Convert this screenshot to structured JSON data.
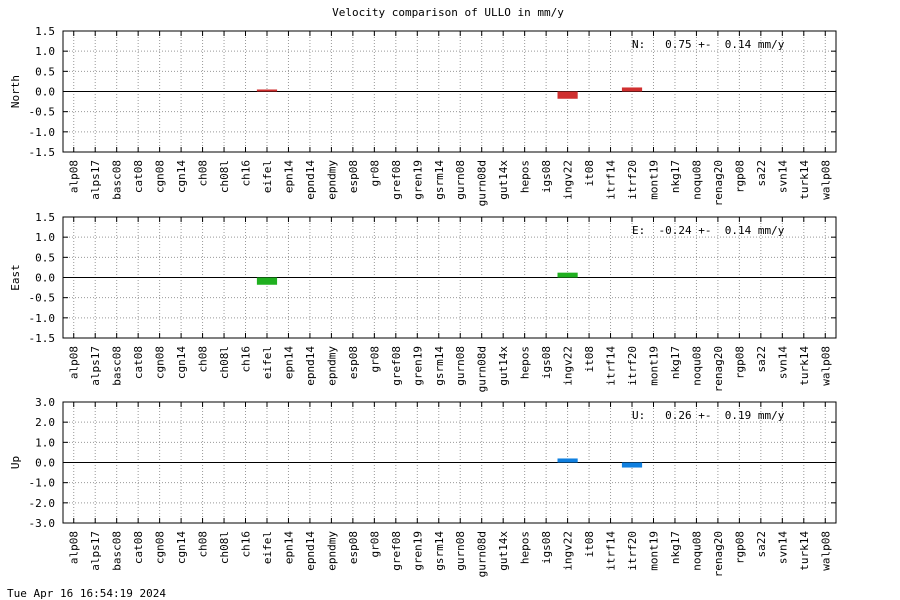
{
  "title": "Velocity comparison of ULLO in mm/y",
  "timestamp": "Tue Apr 16 16:54:19 2024",
  "chart_data": [
    {
      "type": "bar",
      "ylabel": "North",
      "annotation": "N:   0.75 +-  0.14 mm/y",
      "color": "#d03030",
      "grid": true,
      "categories": [
        "alp08",
        "alps17",
        "basc08",
        "cat08",
        "cgn08",
        "cgn14",
        "ch08",
        "ch08l",
        "ch16",
        "eifel",
        "epn14",
        "epnd14",
        "epndmy",
        "esp08",
        "gr08",
        "gref08",
        "gren19",
        "gsrm14",
        "gurn08",
        "gurn08d",
        "gut14x",
        "hepos",
        "igs08",
        "ingv22",
        "it08",
        "itrf14",
        "itrf20",
        "mont19",
        "nkg17",
        "noqu08",
        "renag20",
        "rgp08",
        "sa22",
        "svn14",
        "turk14",
        "walp08"
      ],
      "values": [
        null,
        null,
        null,
        null,
        null,
        null,
        null,
        null,
        null,
        0.05,
        null,
        null,
        null,
        null,
        null,
        null,
        null,
        null,
        null,
        null,
        null,
        null,
        null,
        -0.18,
        null,
        null,
        0.1,
        null,
        null,
        null,
        null,
        null,
        null,
        null,
        null,
        null
      ],
      "ylim": [
        -1.5,
        1.5
      ],
      "yticks": [
        1.5,
        {
          "value": 1,
          "label": "1.0"
        },
        0.5,
        {
          "value": 0,
          "label": "0.0"
        },
        -0.5,
        {
          "value": -1,
          "label": "-1.0"
        },
        -1.5
      ]
    },
    {
      "type": "bar",
      "ylabel": "East",
      "annotation": "E:  -0.24 +-  0.14 mm/y",
      "color": "#20b020",
      "grid": true,
      "categories": [
        "alp08",
        "alps17",
        "basc08",
        "cat08",
        "cgn08",
        "cgn14",
        "ch08",
        "ch08l",
        "ch16",
        "eifel",
        "epn14",
        "epnd14",
        "epndmy",
        "esp08",
        "gr08",
        "gref08",
        "gren19",
        "gsrm14",
        "gurn08",
        "gurn08d",
        "gut14x",
        "hepos",
        "igs08",
        "ingv22",
        "it08",
        "itrf14",
        "itrf20",
        "mont19",
        "nkg17",
        "noqu08",
        "renag20",
        "rgp08",
        "sa22",
        "svn14",
        "turk14",
        "walp08"
      ],
      "values": [
        null,
        null,
        null,
        null,
        null,
        null,
        null,
        null,
        null,
        -0.18,
        null,
        null,
        null,
        null,
        null,
        null,
        null,
        null,
        null,
        null,
        null,
        null,
        null,
        0.12,
        null,
        null,
        null,
        null,
        null,
        null,
        null,
        null,
        null,
        null,
        null,
        null
      ],
      "ylim": [
        -1.5,
        1.5
      ],
      "yticks": [
        1.5,
        {
          "value": 1,
          "label": "1.0"
        },
        0.5,
        {
          "value": 0,
          "label": "0.0"
        },
        -0.5,
        {
          "value": -1,
          "label": "-1.0"
        },
        -1.5
      ]
    },
    {
      "type": "bar",
      "ylabel": "Up",
      "annotation": "U:   0.26 +-  0.19 mm/y",
      "color": "#1080e0",
      "grid": true,
      "categories": [
        "alp08",
        "alps17",
        "basc08",
        "cat08",
        "cgn08",
        "cgn14",
        "ch08",
        "ch08l",
        "ch16",
        "eifel",
        "epn14",
        "epnd14",
        "epndmy",
        "esp08",
        "gr08",
        "gref08",
        "gren19",
        "gsrm14",
        "gurn08",
        "gurn08d",
        "gut14x",
        "hepos",
        "igs08",
        "ingv22",
        "it08",
        "itrf14",
        "itrf20",
        "mont19",
        "nkg17",
        "noqu08",
        "renag20",
        "rgp08",
        "sa22",
        "svn14",
        "turk14",
        "walp08"
      ],
      "values": [
        null,
        null,
        null,
        null,
        null,
        null,
        null,
        null,
        null,
        null,
        null,
        null,
        null,
        null,
        null,
        null,
        null,
        null,
        null,
        null,
        null,
        null,
        null,
        0.2,
        null,
        null,
        -0.25,
        null,
        null,
        null,
        null,
        null,
        null,
        null,
        null,
        null
      ],
      "ylim": [
        -3,
        3
      ],
      "yticks": [
        {
          "value": 3,
          "label": "3.0"
        },
        {
          "value": 2,
          "label": "2.0"
        },
        {
          "value": 1,
          "label": "1.0"
        },
        {
          "value": 0,
          "label": "0.0"
        },
        {
          "value": -1,
          "label": "-1.0"
        },
        {
          "value": -2,
          "label": "-2.0"
        },
        {
          "value": -3,
          "label": "-3.0"
        }
      ]
    }
  ]
}
